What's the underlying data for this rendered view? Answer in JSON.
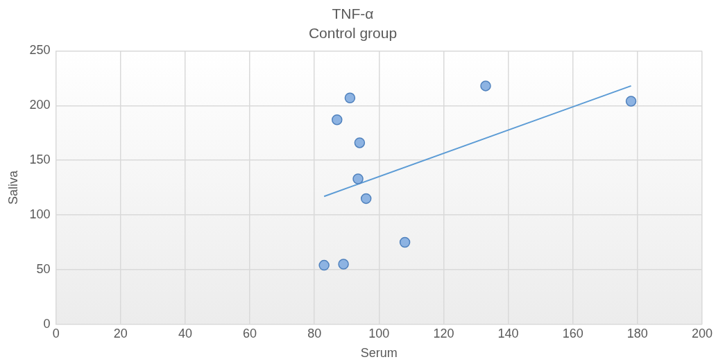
{
  "chart_data": {
    "type": "scatter",
    "title": "TNF-α",
    "subtitle": "Control group",
    "xlabel": "Serum",
    "ylabel": "Saliva",
    "xlim": [
      0,
      200
    ],
    "xticks": [
      0,
      20,
      40,
      60,
      80,
      100,
      120,
      140,
      160,
      180,
      200
    ],
    "ylim": [
      0,
      250
    ],
    "yticks": [
      0,
      50,
      100,
      150,
      200,
      250
    ],
    "grid": true,
    "legend": false,
    "marker": "circle",
    "series": [
      {
        "type": "scatter",
        "color": "#8db3e2",
        "x": [
          83,
          89,
          87,
          91,
          94,
          93.5,
          96,
          108,
          133,
          178
        ],
        "values": [
          54,
          55,
          187,
          207,
          166,
          133,
          115,
          75,
          218,
          204
        ]
      },
      {
        "type": "line",
        "color": "#5b9bd5",
        "marker": "none",
        "x": [
          83,
          178
        ],
        "values": [
          117,
          218
        ]
      }
    ]
  }
}
